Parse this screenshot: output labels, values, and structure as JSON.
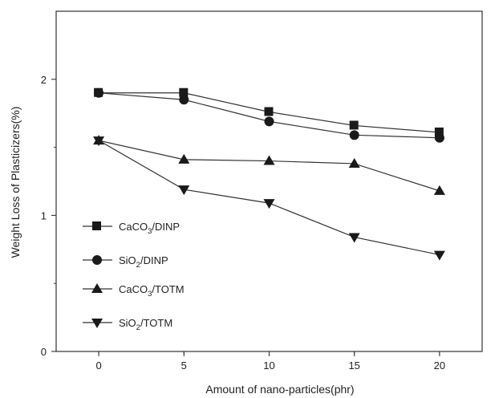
{
  "chart_data": {
    "type": "line",
    "title": "",
    "xlabel": "Amount of nano-particles(phr)",
    "ylabel": "Weight Loss of Plasticizers(%)",
    "x": [
      0,
      5,
      10,
      15,
      20
    ],
    "xlim": [
      -2.5,
      22.5
    ],
    "ylim": [
      0,
      2.5
    ],
    "x_ticks": [
      "0",
      "5",
      "10",
      "15",
      "20"
    ],
    "y_ticks": [
      "0",
      "1",
      "2"
    ],
    "grid": false,
    "legend_position": "lower-left",
    "series": [
      {
        "name": "CaCO3/DINP",
        "label_main": "CaCO",
        "label_sub": "3",
        "label_tail": "/DINP",
        "marker": "square",
        "values": [
          1.9,
          1.9,
          1.76,
          1.66,
          1.61
        ]
      },
      {
        "name": "SiO2/DINP",
        "label_main": "SiO",
        "label_sub": "2",
        "label_tail": "/DINP",
        "marker": "circle",
        "values": [
          1.9,
          1.85,
          1.69,
          1.59,
          1.57
        ]
      },
      {
        "name": "CaCO3/TOTM",
        "label_main": "CaCO",
        "label_sub": "3",
        "label_tail": "/TOTM",
        "marker": "triangle-up",
        "values": [
          1.55,
          1.41,
          1.4,
          1.38,
          1.18
        ]
      },
      {
        "name": "SiO2/TOTM",
        "label_main": "SiO",
        "label_sub": "2",
        "label_tail": "/TOTM",
        "marker": "triangle-down",
        "values": [
          1.55,
          1.19,
          1.09,
          0.84,
          0.71
        ]
      }
    ],
    "colors": {
      "line": "#333333",
      "marker": "#1a1a1a",
      "axis": "#333333"
    }
  }
}
